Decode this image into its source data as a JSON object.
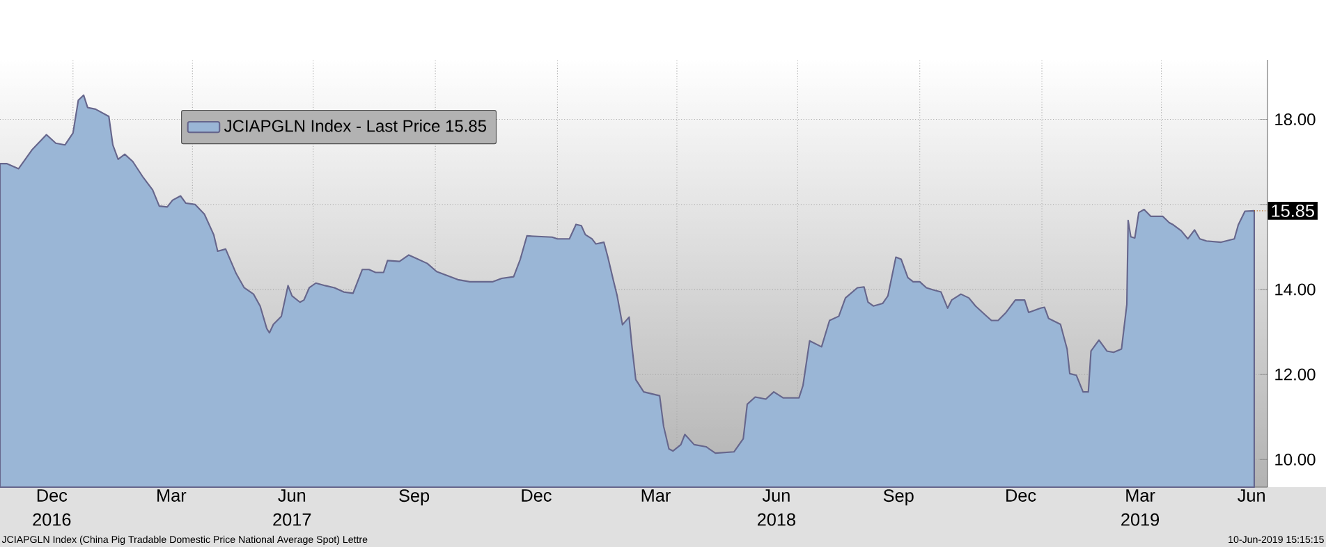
{
  "chart_data": {
    "type": "area",
    "x": [
      "2016-11-07",
      "2016-11-12",
      "2016-11-21",
      "2016-12-01",
      "2016-12-12",
      "2016-12-19",
      "2016-12-26",
      "2017-01-01",
      "2017-01-05",
      "2017-01-09",
      "2017-01-12",
      "2017-01-18",
      "2017-01-28",
      "2017-01-31",
      "2017-02-04",
      "2017-02-09",
      "2017-02-15",
      "2017-02-23",
      "2017-03-02",
      "2017-03-07",
      "2017-03-13",
      "2017-03-17",
      "2017-03-23",
      "2017-03-27",
      "2017-04-03",
      "2017-04-10",
      "2017-04-17",
      "2017-04-20",
      "2017-04-26",
      "2017-05-04",
      "2017-05-10",
      "2017-05-17",
      "2017-05-22",
      "2017-05-27",
      "2017-05-29",
      "2017-06-01",
      "2017-06-07",
      "2017-06-12",
      "2017-06-15",
      "2017-06-21",
      "2017-06-24",
      "2017-06-28",
      "2017-07-03",
      "2017-07-10",
      "2017-07-17",
      "2017-07-24",
      "2017-07-31",
      "2017-08-07",
      "2017-08-12",
      "2017-08-17",
      "2017-08-23",
      "2017-08-26",
      "2017-09-04",
      "2017-09-11",
      "2017-09-16",
      "2017-09-25",
      "2017-10-02",
      "2017-10-18",
      "2017-10-27",
      "2017-11-13",
      "2017-11-20",
      "2017-11-29",
      "2017-12-04",
      "2017-12-09",
      "2017-12-28",
      "2018-01-01",
      "2018-01-10",
      "2018-01-15",
      "2018-01-19",
      "2018-01-22",
      "2018-01-27",
      "2018-01-30",
      "2018-02-05",
      "2018-02-08",
      "2018-02-12",
      "2018-02-15",
      "2018-02-19",
      "2018-02-24",
      "2018-02-26",
      "2018-03-01",
      "2018-03-07",
      "2018-03-19",
      "2018-03-22",
      "2018-03-26",
      "2018-03-29",
      "2018-04-04",
      "2018-04-07",
      "2018-04-14",
      "2018-04-23",
      "2018-04-30",
      "2018-05-14",
      "2018-05-21",
      "2018-05-24",
      "2018-05-30",
      "2018-06-07",
      "2018-06-13",
      "2018-06-20",
      "2018-07-02",
      "2018-07-05",
      "2018-07-10",
      "2018-07-19",
      "2018-07-25",
      "2018-08-01",
      "2018-08-06",
      "2018-08-15",
      "2018-08-20",
      "2018-08-23",
      "2018-08-27",
      "2018-09-03",
      "2018-09-07",
      "2018-09-13",
      "2018-09-17",
      "2018-09-22",
      "2018-09-26",
      "2018-10-01",
      "2018-10-06",
      "2018-10-11",
      "2018-10-17",
      "2018-10-22",
      "2018-10-25",
      "2018-11-01",
      "2018-11-07",
      "2018-11-12",
      "2018-11-19",
      "2018-11-24",
      "2018-11-29",
      "2018-12-05",
      "2018-12-12",
      "2018-12-19",
      "2018-12-22",
      "2018-12-31",
      "2019-01-03",
      "2019-01-06",
      "2019-01-15",
      "2019-01-20",
      "2019-01-22",
      "2019-01-27",
      "2019-02-01",
      "2019-02-05",
      "2019-02-07",
      "2019-02-13",
      "2019-02-19",
      "2019-02-24",
      "2019-03-02",
      "2019-03-06",
      "2019-03-07",
      "2019-03-09",
      "2019-03-12",
      "2019-03-15",
      "2019-03-19",
      "2019-03-24",
      "2019-04-02",
      "2019-04-07",
      "2019-04-10",
      "2019-04-16",
      "2019-04-21",
      "2019-04-26",
      "2019-04-30",
      "2019-05-05",
      "2019-05-16",
      "2019-05-26",
      "2019-05-29",
      "2019-06-03",
      "2019-06-10"
    ],
    "series": [
      {
        "name": "JCIAPGLN Index - Last Price 15.85",
        "color": "#9ab6d6",
        "values": [
          16.96,
          16.96,
          16.84,
          17.28,
          17.64,
          17.44,
          17.4,
          17.68,
          18.45,
          18.57,
          18.28,
          18.24,
          18.07,
          17.4,
          17.06,
          17.18,
          17.01,
          16.63,
          16.34,
          15.96,
          15.94,
          16.1,
          16.2,
          16.03,
          16.0,
          15.77,
          15.29,
          14.9,
          14.95,
          14.37,
          14.04,
          13.89,
          13.61,
          13.08,
          12.98,
          13.18,
          13.37,
          14.09,
          13.85,
          13.7,
          13.75,
          14.04,
          14.15,
          14.09,
          14.04,
          13.94,
          13.91,
          14.47,
          14.47,
          14.4,
          14.4,
          14.68,
          14.66,
          14.81,
          14.74,
          14.61,
          14.42,
          14.23,
          14.18,
          14.18,
          14.26,
          14.3,
          14.71,
          15.26,
          15.23,
          15.19,
          15.19,
          15.53,
          15.5,
          15.29,
          15.19,
          15.07,
          15.11,
          14.76,
          14.23,
          13.85,
          13.17,
          13.35,
          12.7,
          11.88,
          11.59,
          11.5,
          10.78,
          10.25,
          10.2,
          10.35,
          10.59,
          10.35,
          10.3,
          10.15,
          10.18,
          10.49,
          11.3,
          11.47,
          11.42,
          11.59,
          11.45,
          11.45,
          11.74,
          12.79,
          12.65,
          13.27,
          13.37,
          13.8,
          14.04,
          14.06,
          13.7,
          13.61,
          13.67,
          13.85,
          14.76,
          14.71,
          14.28,
          14.18,
          14.18,
          14.04,
          13.99,
          13.94,
          13.56,
          13.75,
          13.89,
          13.8,
          13.61,
          13.41,
          13.27,
          13.27,
          13.46,
          13.75,
          13.75,
          13.46,
          13.56,
          13.58,
          13.32,
          13.18,
          12.6,
          12.02,
          11.98,
          11.59,
          11.59,
          12.55,
          12.81,
          12.55,
          12.52,
          12.6,
          13.65,
          15.62,
          15.24,
          15.21,
          15.81,
          15.88,
          15.72,
          15.72,
          15.57,
          15.52,
          15.38,
          15.19,
          15.4,
          15.19,
          15.14,
          15.11,
          15.19,
          15.52,
          15.84,
          15.85
        ]
      }
    ],
    "xlim": [
      "2016-11-07",
      "2019-06-20"
    ],
    "xticks": [
      {
        "value": "2016-12-16",
        "label": "Dec 2016"
      },
      {
        "value": "2017-01-01",
        "label": null
      },
      {
        "value": "2017-03-16",
        "label": "Mar"
      },
      {
        "value": "2017-04-01",
        "label": null
      },
      {
        "value": "2017-06-15",
        "label": "Jun 2017"
      },
      {
        "value": "2017-07-01",
        "label": null
      },
      {
        "value": "2017-09-15",
        "label": "Sep"
      },
      {
        "value": "2017-10-01",
        "label": null
      },
      {
        "value": "2017-12-16",
        "label": "Dec"
      },
      {
        "value": "2018-01-01",
        "label": null
      },
      {
        "value": "2018-03-16",
        "label": "Mar"
      },
      {
        "value": "2018-04-01",
        "label": null
      },
      {
        "value": "2018-06-15",
        "label": "Jun 2018"
      },
      {
        "value": "2018-07-01",
        "label": null
      },
      {
        "value": "2018-09-15",
        "label": "Sep"
      },
      {
        "value": "2018-10-01",
        "label": null
      },
      {
        "value": "2018-12-16",
        "label": "Dec"
      },
      {
        "value": "2019-01-01",
        "label": null
      },
      {
        "value": "2019-03-16",
        "label": "Mar 2019"
      },
      {
        "value": "2019-04-01",
        "label": null
      },
      {
        "value": "2019-06-08",
        "label": "Jun"
      }
    ],
    "ylim": [
      9.35,
      19.4
    ],
    "yticks": [
      {
        "value": 10,
        "label": "10.00"
      },
      {
        "value": 12,
        "label": "12.00"
      },
      {
        "value": 14,
        "label": "14.00"
      },
      {
        "value": 16,
        "label": null
      },
      {
        "value": 18,
        "label": "18.00"
      }
    ],
    "grid": true,
    "legend": "top left",
    "annotations": [
      {
        "text": "15.85",
        "x": "2019-06-10",
        "y": 15.85
      },
      "JCIAPGLN Index (China Pig Tradable Domestic Price National Average Spot) Lettre",
      "10-Jun-2019 15:15:15"
    ]
  }
}
